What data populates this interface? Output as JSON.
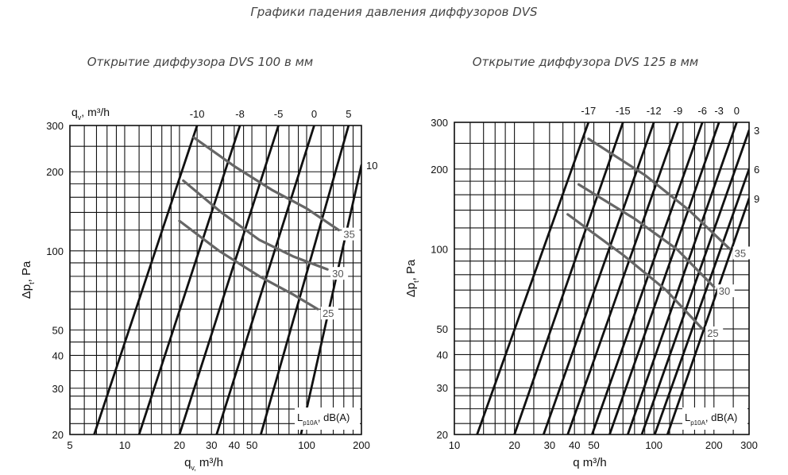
{
  "page": {
    "title": "Графики падения давления диффузоров DVS"
  },
  "chart_data": [
    {
      "type": "line",
      "title": "Открытие диффузора DVS 100 в мм",
      "xlabel": "q",
      "xlabel_sub": "v,",
      "xlabel_unit": " m³/h",
      "ylabel": "Δp",
      "ylabel_sub": "t",
      "ylabel_unit": ", Pa",
      "top_axis_label": "q",
      "top_axis_label_sub": "v",
      "top_axis_label_unit": ", m³/h",
      "xscale": "log",
      "yscale": "log",
      "xlim": [
        5,
        200
      ],
      "ylim": [
        20,
        300
      ],
      "xticks": [
        5,
        10,
        20,
        30,
        40,
        50,
        100,
        200
      ],
      "yticks": [
        20,
        30,
        40,
        50,
        100,
        200,
        300
      ],
      "grid": true,
      "x_grid": [
        5,
        6,
        7,
        8,
        9,
        10,
        12,
        14,
        16,
        18,
        20,
        25,
        30,
        35,
        40,
        45,
        50,
        60,
        70,
        80,
        90,
        100,
        120,
        140,
        160,
        180,
        200
      ],
      "y_grid": [
        20,
        22,
        25,
        28,
        30,
        35,
        40,
        45,
        50,
        60,
        70,
        80,
        90,
        100,
        120,
        140,
        160,
        180,
        200,
        250,
        300
      ],
      "series_label_position": "top",
      "series": [
        {
          "name": "-10",
          "x": [
            6.8,
            25
          ],
          "y": [
            20,
            300
          ]
        },
        {
          "name": "-8",
          "x": [
            12,
            43
          ],
          "y": [
            20,
            300
          ]
        },
        {
          "name": "-5",
          "x": [
            20,
            70
          ],
          "y": [
            20,
            300
          ]
        },
        {
          "name": "0",
          "x": [
            32,
            110
          ],
          "y": [
            20,
            300
          ]
        },
        {
          "name": "5",
          "x": [
            56,
            170
          ],
          "y": [
            20,
            300
          ]
        },
        {
          "name": "10",
          "x": [
            93,
            200
          ],
          "y": [
            20,
            212
          ]
        }
      ],
      "sound_legend_label": "L",
      "sound_legend_sub": "p10A",
      "sound_legend_unit": ", dB(A)",
      "sound_series": [
        {
          "name": "35",
          "x": [
            24,
            40,
            65,
            100,
            150
          ],
          "y": [
            270,
            210,
            170,
            145,
            120
          ]
        },
        {
          "name": "30",
          "x": [
            21,
            34,
            55,
            85,
            130
          ],
          "y": [
            185,
            140,
            110,
            95,
            85
          ]
        },
        {
          "name": "25",
          "x": [
            20,
            33,
            55,
            85,
            115
          ],
          "y": [
            130,
            100,
            80,
            68,
            60
          ]
        }
      ]
    },
    {
      "type": "line",
      "title": "Открытие диффузора DVS 125 в мм",
      "xlabel": "q",
      "xlabel_unit": "   m³/h",
      "ylabel": "Δp",
      "ylabel_sub": "t",
      "ylabel_unit": ", Pa",
      "xscale": "log",
      "yscale": "log",
      "xlim": [
        10,
        300
      ],
      "ylim": [
        20,
        300
      ],
      "xticks": [
        10,
        20,
        30,
        40,
        50,
        100,
        200,
        300
      ],
      "yticks": [
        20,
        30,
        40,
        50,
        100,
        200,
        300
      ],
      "grid": true,
      "x_grid": [
        10,
        12,
        14,
        16,
        18,
        20,
        25,
        30,
        35,
        40,
        45,
        50,
        60,
        70,
        80,
        90,
        100,
        120,
        140,
        160,
        180,
        200,
        250,
        300
      ],
      "y_grid": [
        20,
        22,
        25,
        28,
        30,
        35,
        40,
        45,
        50,
        60,
        70,
        80,
        90,
        100,
        120,
        140,
        160,
        180,
        200,
        250,
        300
      ],
      "series": [
        {
          "name": "-17",
          "x": [
            13,
            47
          ],
          "y": [
            20,
            300
          ],
          "label_pos": "top"
        },
        {
          "name": "-15",
          "x": [
            20,
            70
          ],
          "y": [
            20,
            300
          ],
          "label_pos": "top"
        },
        {
          "name": "-12",
          "x": [
            28,
            100
          ],
          "y": [
            20,
            300
          ],
          "label_pos": "top"
        },
        {
          "name": "-9",
          "x": [
            37,
            132
          ],
          "y": [
            20,
            300
          ],
          "label_pos": "top"
        },
        {
          "name": "-6",
          "x": [
            49,
            175
          ],
          "y": [
            20,
            300
          ],
          "label_pos": "top"
        },
        {
          "name": "-3",
          "x": [
            60,
            212
          ],
          "y": [
            20,
            300
          ],
          "label_pos": "top"
        },
        {
          "name": "0",
          "x": [
            74,
            260
          ],
          "y": [
            20,
            300
          ],
          "label_pos": "top"
        },
        {
          "name": "3",
          "x": [
            87,
            300
          ],
          "y": [
            20,
            280
          ],
          "label_pos": "right"
        },
        {
          "name": "6",
          "x": [
            101,
            300
          ],
          "y": [
            20,
            200
          ],
          "label_pos": "right"
        },
        {
          "name": "9",
          "x": [
            117,
            300
          ],
          "y": [
            20,
            155
          ],
          "label_pos": "right"
        }
      ],
      "sound_legend_label": "L",
      "sound_legend_sub": "p10A",
      "sound_legend_unit": ", dB(A)",
      "sound_series": [
        {
          "name": "35",
          "x": [
            47,
            90,
            150,
            240
          ],
          "y": [
            260,
            190,
            140,
            100
          ]
        },
        {
          "name": "30",
          "x": [
            42,
            80,
            130,
            200
          ],
          "y": [
            175,
            130,
            100,
            72
          ]
        },
        {
          "name": "25",
          "x": [
            37,
            70,
            115,
            175
          ],
          "y": [
            135,
            95,
            70,
            50
          ]
        }
      ]
    }
  ]
}
